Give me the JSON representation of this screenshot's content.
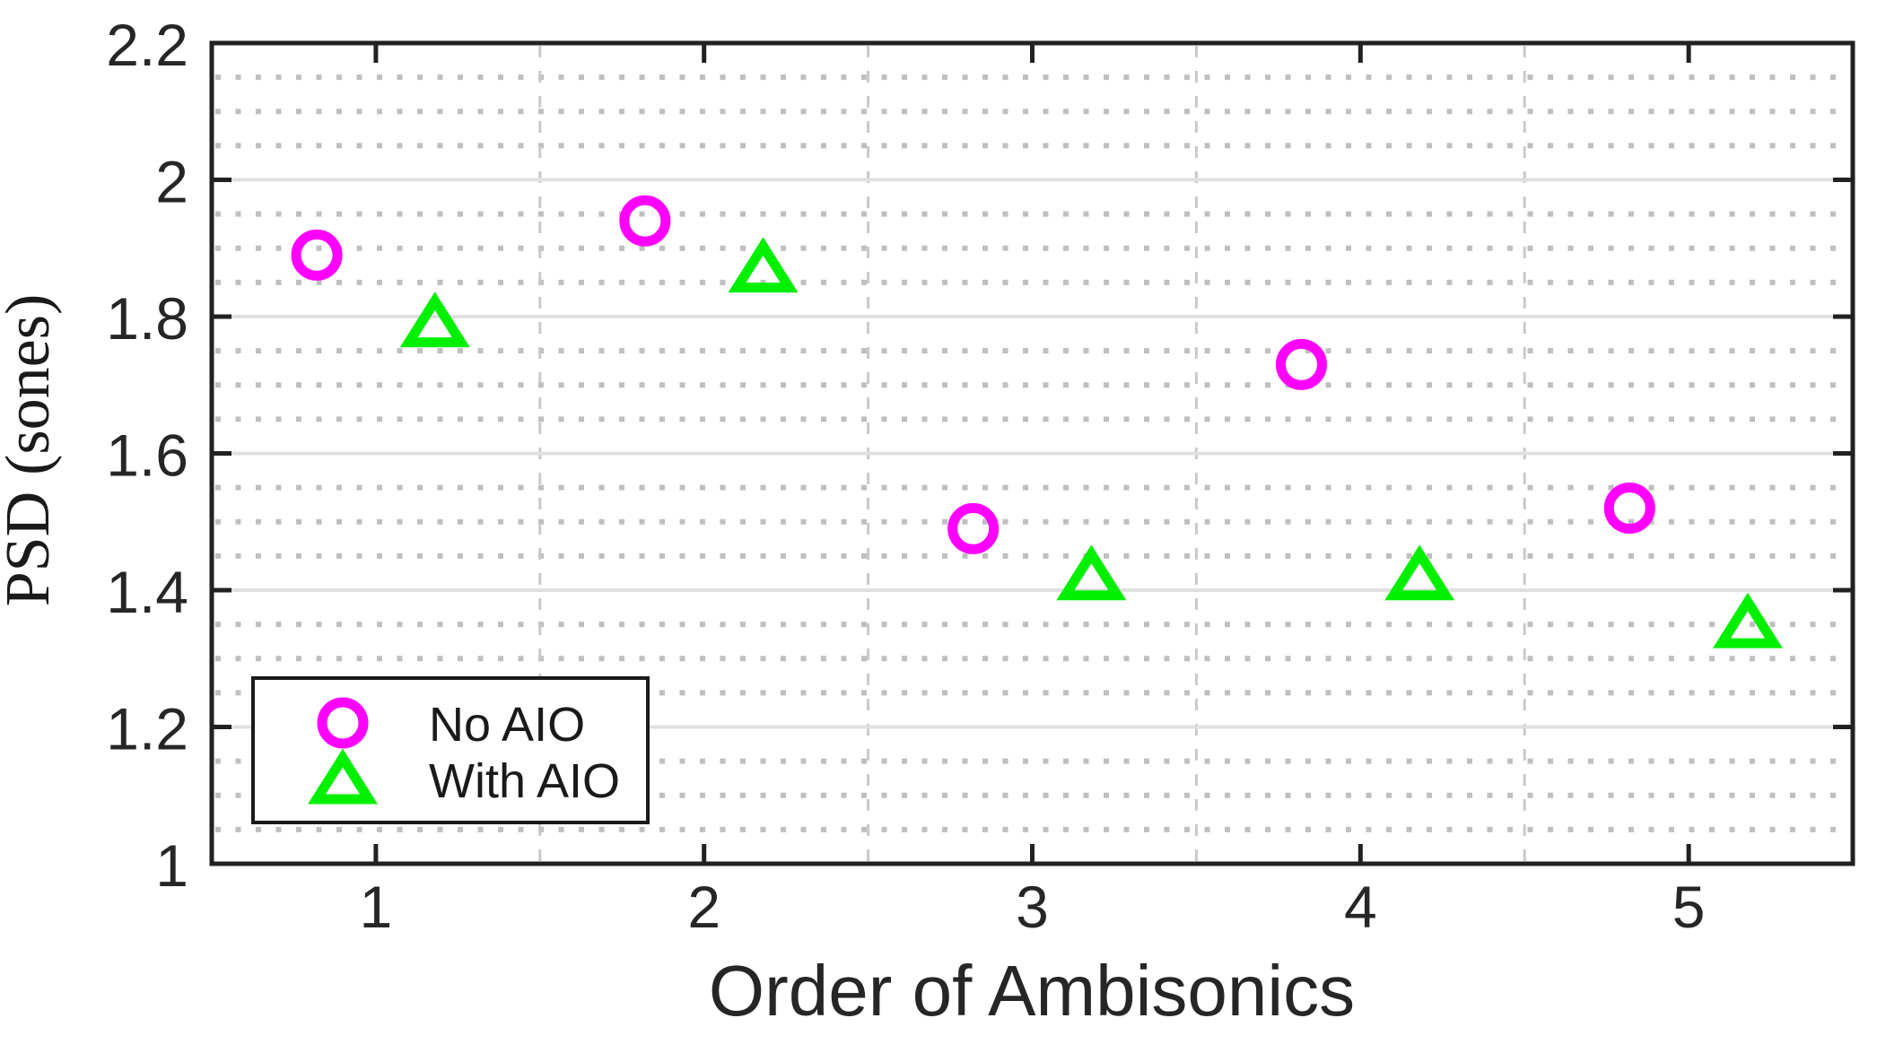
{
  "chart_data": {
    "type": "scatter",
    "title": "",
    "xlabel": "Order of Ambisonics",
    "ylabel_main": "PSD",
    "ylabel_main_overline": true,
    "ylabel_unit": "(sones)",
    "xlim": [
      0.5,
      5.5
    ],
    "ylim": [
      1.0,
      2.2
    ],
    "xticks": {
      "values": [
        1,
        2,
        3,
        4,
        5
      ],
      "labels": [
        "1",
        "2",
        "3",
        "4",
        "5"
      ]
    },
    "yticks": {
      "values": [
        1.0,
        1.2,
        1.4,
        1.6,
        1.8,
        2.0,
        2.2
      ],
      "labels": [
        "1",
        "1.2",
        "1.4",
        "1.6",
        "1.8",
        "2",
        "2.2"
      ]
    },
    "y_minor_step": 0.05,
    "x_minor_grid_positions": [
      1.5,
      2.5,
      3.5,
      4.5
    ],
    "grid": {
      "y_major": "on-solid",
      "y_minor": "on-dotted",
      "x_major": "off",
      "x_minor": "on-dashed"
    },
    "series": [
      {
        "name": "No AIO",
        "marker": "circle",
        "color": "#ff00ff",
        "x": [
          0.82,
          1.82,
          2.82,
          3.82,
          4.82
        ],
        "y": [
          1.89,
          1.94,
          1.49,
          1.73,
          1.52
        ]
      },
      {
        "name": "With AIO",
        "marker": "triangle-up",
        "color": "#00f000",
        "x": [
          1.18,
          2.18,
          3.18,
          4.18,
          5.18
        ],
        "y": [
          1.79,
          1.87,
          1.42,
          1.42,
          1.35
        ]
      }
    ],
    "legend": {
      "position": "southwest",
      "entries": [
        "No AIO",
        "With AIO"
      ]
    }
  },
  "colors": {
    "axis_box": "#212121",
    "tick_text": "#262626",
    "grid_major": "#e0e0e0",
    "grid_minor_dotted": "#bfbfbf",
    "grid_minor_dashed": "#c9c9c9",
    "legend_border": "#1a1a1a",
    "background": "#ffffff",
    "series_no_aio": "#ff00ff",
    "series_with_aio": "#00f000"
  }
}
